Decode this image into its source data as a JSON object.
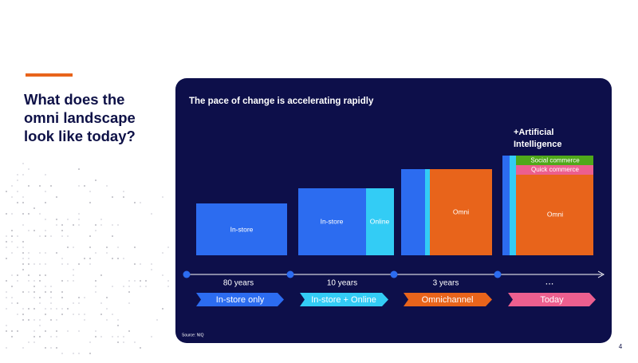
{
  "slide": {
    "title_lines": [
      "What does the",
      "omni landscape",
      "look like today?"
    ],
    "panel_title": "The pace of change is accelerating rapidly",
    "stages": [
      {
        "blocks": [
          "In-store"
        ],
        "duration": "80 years",
        "phase": "In-store only"
      },
      {
        "blocks": [
          "In-store",
          "Online"
        ],
        "duration": "10 years",
        "phase": "In-store + Online"
      },
      {
        "blocks": [
          "Omni"
        ],
        "duration": "3 years",
        "phase": "Omnichannel"
      },
      {
        "blocks": [
          "Omni",
          "Quick commerce",
          "Social commerce"
        ],
        "duration": "...",
        "phase": "Today"
      }
    ],
    "ai_label": [
      "+Artificial",
      "Intelligence"
    ],
    "source": "Source: NIQ",
    "page_number": "4"
  }
}
